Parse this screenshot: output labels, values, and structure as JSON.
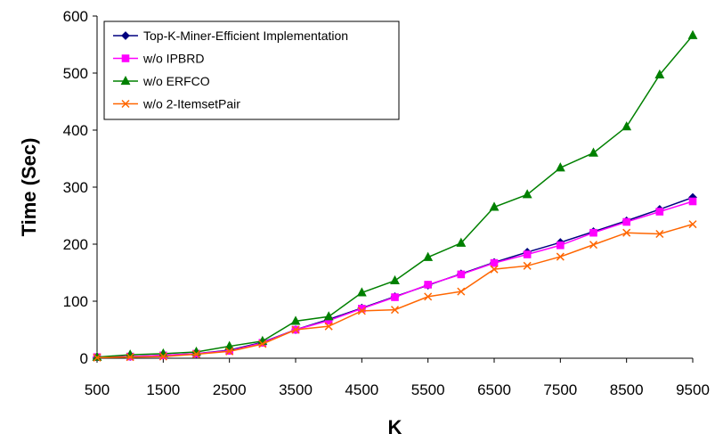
{
  "chart_data": {
    "type": "line",
    "xlabel": "K",
    "ylabel": "Time (Sec)",
    "xlim": [
      500,
      9500
    ],
    "ylim": [
      0,
      600
    ],
    "x_ticks": [
      500,
      1500,
      2500,
      3500,
      4500,
      5500,
      6500,
      7500,
      8500,
      9500
    ],
    "y_ticks": [
      0,
      100,
      200,
      300,
      400,
      500,
      600
    ],
    "grid": false,
    "legend_position": "top-left",
    "x": [
      500,
      1000,
      1500,
      2000,
      2500,
      3000,
      3500,
      4000,
      4500,
      5000,
      5500,
      6000,
      6500,
      7000,
      7500,
      8000,
      8500,
      9000,
      9500
    ],
    "series": [
      {
        "name": "Top-K-Miner-Efficient Implementation",
        "color": "#000080",
        "marker": "diamond",
        "values": [
          2,
          3,
          5,
          8,
          14,
          28,
          50,
          68,
          88,
          108,
          128,
          148,
          168,
          186,
          203,
          222,
          241,
          261,
          282
        ]
      },
      {
        "name": "w/o IPBRD",
        "color": "#ff00ff",
        "marker": "square",
        "values": [
          2,
          3,
          5,
          8,
          13,
          27,
          50,
          66,
          87,
          107,
          129,
          147,
          167,
          182,
          198,
          220,
          239,
          257,
          275
        ]
      },
      {
        "name": "w/o ERFCO",
        "color": "#008000",
        "marker": "triangle",
        "values": [
          2,
          6,
          8,
          11,
          21,
          30,
          65,
          73,
          115,
          136,
          177,
          202,
          265,
          287,
          334,
          360,
          406,
          497,
          566
        ]
      },
      {
        "name": "w/o 2-ItemsetPair",
        "color": "#ff6600",
        "marker": "x",
        "values": [
          1,
          2,
          3,
          7,
          12,
          25,
          50,
          56,
          83,
          85,
          108,
          117,
          156,
          162,
          178,
          199,
          220,
          218,
          235
        ]
      }
    ]
  }
}
